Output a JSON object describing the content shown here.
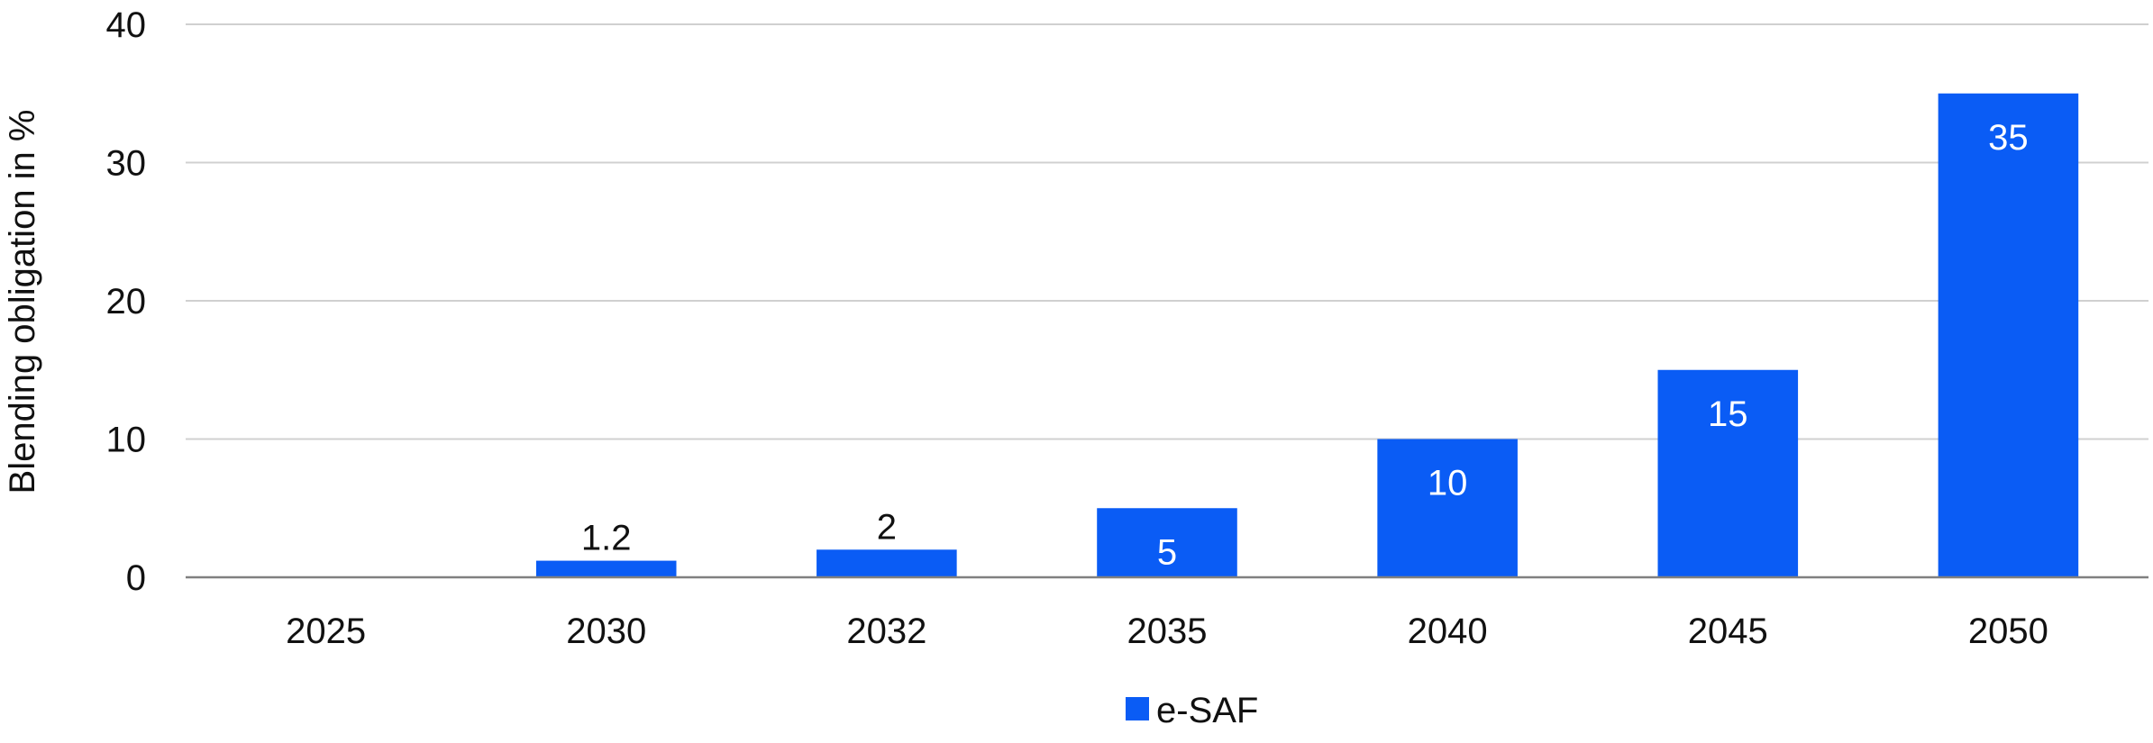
{
  "chart_data": {
    "type": "bar",
    "title": "",
    "xlabel": "",
    "ylabel": "Blending obligation in %",
    "categories": [
      "2025",
      "2030",
      "2032",
      "2035",
      "2040",
      "2045",
      "2050"
    ],
    "series": [
      {
        "name": "e-SAF",
        "values": [
          0,
          1.2,
          2,
          5,
          10,
          15,
          35
        ],
        "data_labels": [
          "",
          "1.2",
          "2",
          "5",
          "10",
          "15",
          "35"
        ],
        "color": "#0a5cf5"
      }
    ],
    "ylim": [
      0,
      40
    ],
    "yticks": [
      0,
      10,
      20,
      30,
      40
    ],
    "grid": true,
    "legend": "bottom-center",
    "colors": {
      "bar": "#0a5cf5",
      "grid": "#d0d0d0",
      "axis": "#808080",
      "label_inside": "#ffffff",
      "label_outside": "#111111"
    }
  }
}
